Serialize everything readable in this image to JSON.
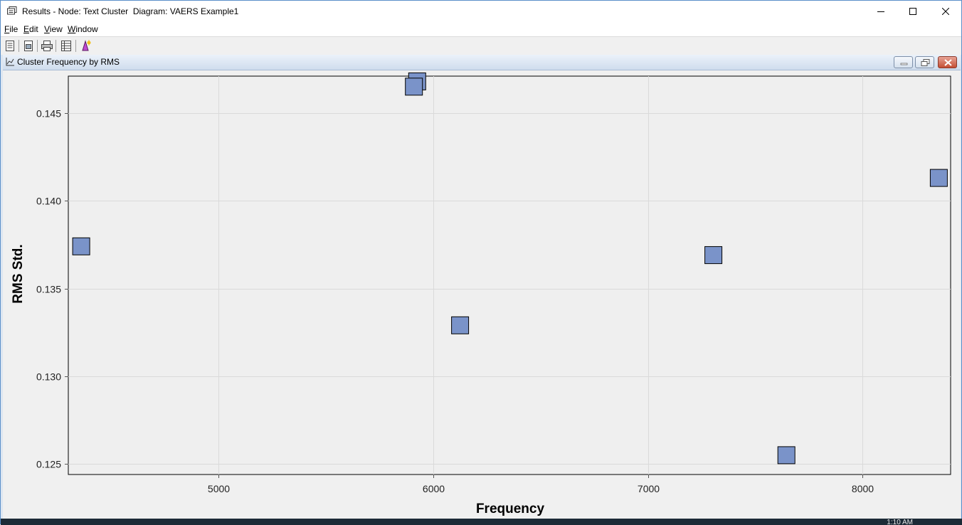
{
  "window": {
    "title": "Results - Node: Text Cluster  Diagram: VAERS Example1"
  },
  "menu": {
    "file": "File",
    "edit": "Edit",
    "view": "View",
    "window": "Window"
  },
  "child_window": {
    "title": "Cluster Frequency by RMS"
  },
  "chart_data": {
    "type": "scatter",
    "title": "",
    "xlabel": "Frequency",
    "ylabel": "RMS Std.",
    "xlim": [
      4300,
      8410
    ],
    "ylim": [
      0.1244,
      0.1471
    ],
    "xticks": [
      5000,
      6000,
      7000,
      8000
    ],
    "xtick_labels": [
      "5000",
      "6000",
      "7000",
      "8000"
    ],
    "yticks": [
      0.125,
      0.13,
      0.135,
      0.14,
      0.145
    ],
    "ytick_labels": [
      "0.125",
      "0.130",
      "0.135",
      "0.140",
      "0.145"
    ],
    "grid": true,
    "marker": "square",
    "marker_color": "#7a93c9",
    "points": [
      {
        "x": 4360,
        "y": 0.1374
      },
      {
        "x": 5925,
        "y": 0.1468
      },
      {
        "x": 5910,
        "y": 0.1465
      },
      {
        "x": 6125,
        "y": 0.1329
      },
      {
        "x": 7305,
        "y": 0.1369
      },
      {
        "x": 7645,
        "y": 0.1255
      },
      {
        "x": 8355,
        "y": 0.1413
      }
    ]
  },
  "taskbar": {
    "clock": "1:10 AM"
  }
}
